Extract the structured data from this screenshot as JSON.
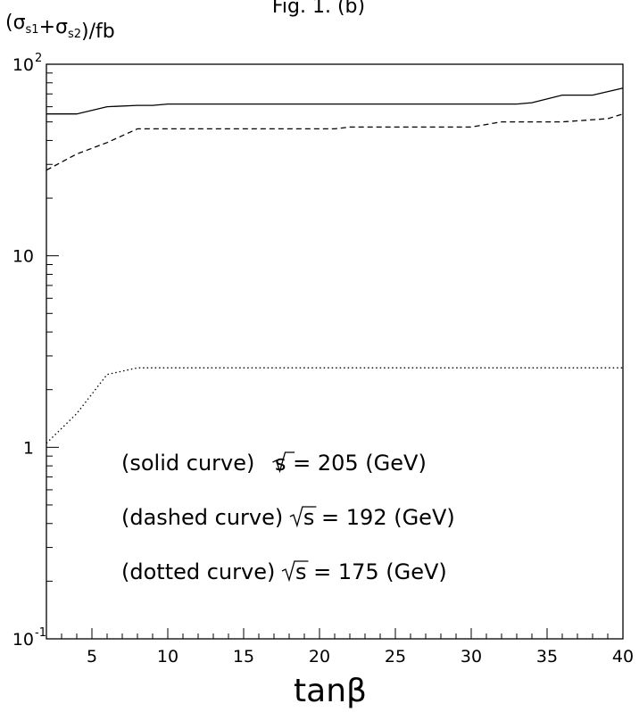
{
  "chart_data": {
    "type": "line",
    "title": "Fig. 1. (b)",
    "ylabel": "(σ_s1+σ_s2)/fb",
    "xlabel": "tanβ",
    "xlim": [
      2,
      40
    ],
    "ylim": [
      0.1,
      100
    ],
    "yscale": "log",
    "grid": false,
    "x_ticks": [
      5,
      10,
      15,
      20,
      25,
      30,
      35,
      40
    ],
    "y_ticks": [
      {
        "value": 0.1,
        "base": "10",
        "exp": "-1"
      },
      {
        "value": 1,
        "base": "1",
        "exp": ""
      },
      {
        "value": 10,
        "base": "10",
        "exp": ""
      },
      {
        "value": 100,
        "base": "10",
        "exp": "2"
      }
    ],
    "series": [
      {
        "style": "solid",
        "color": "#000000",
        "x": [
          2,
          4,
          6,
          8,
          9,
          10,
          15,
          20,
          25,
          30,
          33,
          34,
          36,
          38,
          40
        ],
        "y": [
          55,
          55,
          60,
          61,
          61,
          62,
          62,
          62,
          62,
          62,
          62,
          63,
          69,
          69,
          75
        ]
      },
      {
        "style": "dashed",
        "color": "#000000",
        "x": [
          2,
          4,
          6,
          8,
          12,
          16,
          21,
          22,
          26,
          30,
          32,
          36,
          39,
          40
        ],
        "y": [
          28,
          34,
          39,
          46,
          46,
          46,
          46,
          47,
          47,
          47,
          50,
          50,
          52,
          55
        ]
      },
      {
        "style": "dotted",
        "color": "#000000",
        "x": [
          2,
          4,
          6,
          8,
          10,
          15,
          20,
          25,
          30,
          35,
          40
        ],
        "y": [
          1.05,
          1.5,
          2.4,
          2.6,
          2.6,
          2.6,
          2.6,
          2.6,
          2.6,
          2.6,
          2.6
        ]
      }
    ],
    "annotations": [
      {
        "pre": "(solid  curve) ",
        "rad": "s",
        "post": " = 205 (GeV)"
      },
      {
        "pre": "(dashed curve) ",
        "rad": "s",
        "post": " = 192 (GeV)"
      },
      {
        "pre": "(dotted curve) ",
        "rad": "s",
        "post": " = 175 (GeV)"
      }
    ]
  }
}
